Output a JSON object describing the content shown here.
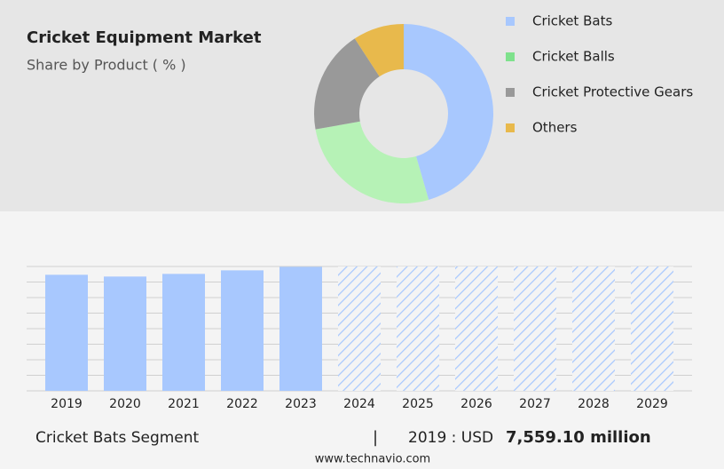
{
  "chart_data": [
    {
      "type": "donut",
      "title": "Cricket Equipment Market",
      "subtitle": "Share by Product ( % )",
      "categories": [
        "Cricket Bats",
        "Cricket Balls",
        "Cricket Protective Gears",
        "Others"
      ],
      "values": [
        45.5,
        26.7,
        18.6,
        9.2
      ],
      "colors": [
        "#a8c8fe",
        "#b6f2b6",
        "#999999",
        "#e8b94c"
      ],
      "legend_colors": [
        "#a8c8fe",
        "#7ee18c",
        "#999999",
        "#e8b94c"
      ]
    },
    {
      "type": "bar",
      "categories": [
        "2019",
        "2020",
        "2021",
        "2022",
        "2023",
        "2024",
        "2025",
        "2026",
        "2027",
        "2028",
        "2029"
      ],
      "values": [
        7559.1,
        7444,
        7617,
        7848,
        8078,
        null,
        null,
        null,
        null,
        null,
        null
      ],
      "color": "#a8c8fe",
      "ylim": [
        0,
        8100
      ],
      "grid": true
    }
  ],
  "footer": {
    "segment": "Cricket Bats Segment",
    "separator": "|",
    "label": "2019 : USD",
    "value": "7,559.10 million",
    "source": "www.technavio.com"
  }
}
